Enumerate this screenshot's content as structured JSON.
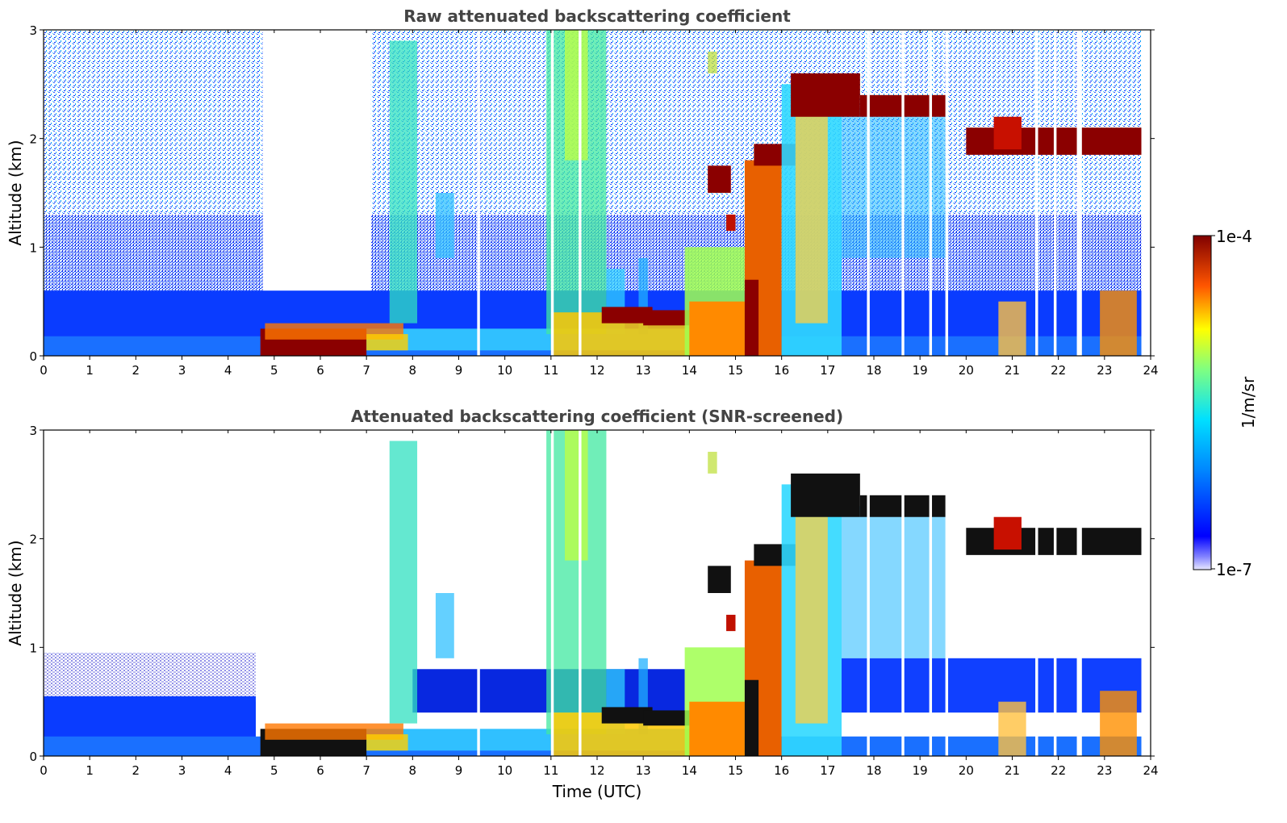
{
  "chart_data": [
    {
      "type": "heatmap",
      "title": "Raw attenuated backscattering coefficient",
      "xlabel": "",
      "ylabel": "Altitude (km)",
      "xlim": [
        0,
        24
      ],
      "ylim": [
        0,
        3
      ],
      "x_ticks": [
        "0",
        "1",
        "2",
        "3",
        "4",
        "5",
        "6",
        "7",
        "8",
        "9",
        "10",
        "11",
        "12",
        "13",
        "14",
        "15",
        "16",
        "17",
        "18",
        "19",
        "20",
        "21",
        "22",
        "23",
        "24"
      ],
      "y_ticks": [
        "0",
        "1",
        "2",
        "3"
      ],
      "features": [
        {
          "name": "boundary layer aerosol",
          "x_range": [
            0,
            23.8
          ],
          "alt_top_km": 0.6,
          "level": "low-moderate"
        },
        {
          "name": "low dense layer",
          "x_range": [
            4.7,
            7.8
          ],
          "alt_km": [
            0.0,
            0.25
          ],
          "level": "very high"
        },
        {
          "name": "rain / virga columns",
          "x_range": [
            13.9,
            17.3
          ],
          "alt_km": [
            0.0,
            2.6
          ],
          "level": "high"
        },
        {
          "name": "mid-level cloud",
          "x_range": [
            16.2,
            19.6
          ],
          "alt_km": [
            2.2,
            2.6
          ],
          "level": "very high"
        },
        {
          "name": "cloud layer",
          "x_range": [
            20.0,
            23.8
          ],
          "alt_km": [
            1.9,
            2.1
          ],
          "level": "very high"
        }
      ]
    },
    {
      "type": "heatmap",
      "title": "Attenuated backscattering coefficient (SNR-screened)",
      "xlabel": "Time (UTC)",
      "ylabel": "Altitude (km)",
      "xlim": [
        0,
        24
      ],
      "ylim": [
        0,
        3
      ],
      "x_ticks": [
        "0",
        "1",
        "2",
        "3",
        "4",
        "5",
        "6",
        "7",
        "8",
        "9",
        "10",
        "11",
        "12",
        "13",
        "14",
        "15",
        "16",
        "17",
        "18",
        "19",
        "20",
        "21",
        "22",
        "23",
        "24"
      ],
      "y_ticks": [
        "0",
        "1",
        "2",
        "3"
      ],
      "features": [
        {
          "name": "boundary layer aerosol",
          "x_range": [
            0,
            4.6
          ],
          "alt_top_km": 0.95,
          "level": "low-moderate"
        },
        {
          "name": "saturated low layer",
          "x_range": [
            4.7,
            7.8
          ],
          "alt_km": [
            0.0,
            0.25
          ],
          "level": "saturated"
        },
        {
          "name": "rain / virga columns",
          "x_range": [
            13.9,
            17.3
          ],
          "alt_km": [
            0.0,
            2.6
          ],
          "level": "high"
        },
        {
          "name": "mid-level cloud",
          "x_range": [
            16.2,
            19.6
          ],
          "alt_km": [
            2.2,
            2.6
          ],
          "level": "saturated"
        },
        {
          "name": "cloud layer",
          "x_range": [
            20.0,
            23.8
          ],
          "alt_km": [
            1.9,
            2.1
          ],
          "level": "saturated"
        }
      ]
    }
  ],
  "colorbar": {
    "max_label": "1e-4",
    "min_label": "1e-7",
    "unit_label": "1/m/sr",
    "colors": [
      "#e6e6ff",
      "#0000ff",
      "#00aaff",
      "#00ffcc",
      "#aaff00",
      "#ffcc00",
      "#ff4400",
      "#800000"
    ]
  }
}
